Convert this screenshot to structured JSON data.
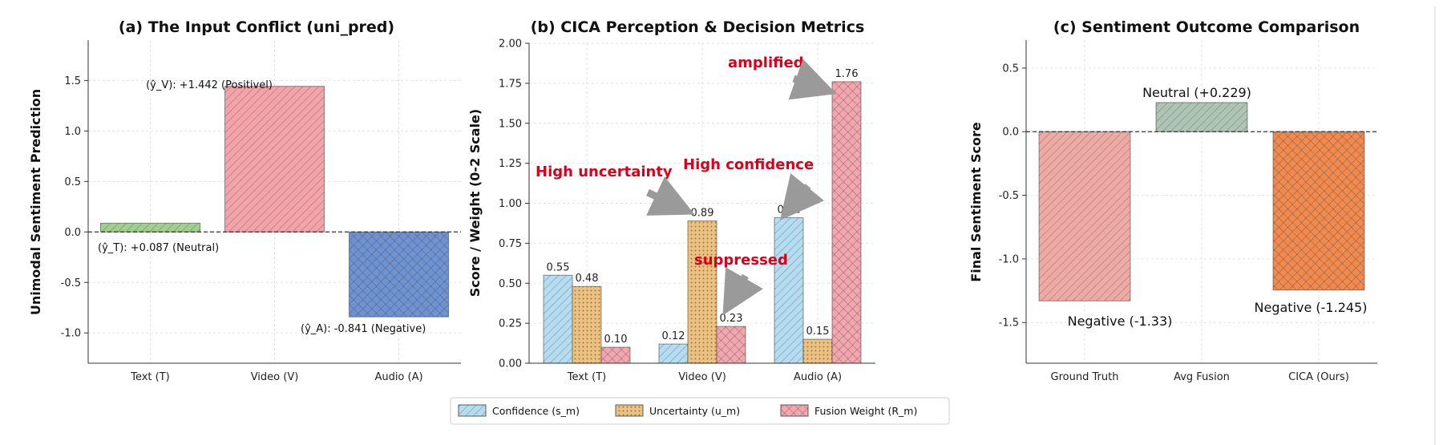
{
  "chart_data": [
    {
      "type": "bar",
      "title": "(a) The Input Conflict (uni_pred)",
      "xlabel": "",
      "ylabel": "Unimodal Sentiment Prediction",
      "categories": [
        "Text (T)",
        "Video (V)",
        "Audio (A)"
      ],
      "values": [
        0.087,
        1.442,
        -0.841
      ],
      "colors": [
        "#9fd18b",
        "#f3a3a9",
        "#6f93d2"
      ],
      "ylim": [
        -1.3,
        1.9
      ],
      "yticks": [
        "-1.0",
        "-0.5",
        "0.0",
        "0.5",
        "1.0",
        "1.5"
      ],
      "annotations": [
        "(ŷ_T): +0.087 (Neutral)",
        "(ŷ_V): +1.442 (Positivel)",
        "(ŷ_A): -0.841 (Negative)"
      ],
      "grid": true
    },
    {
      "type": "bar",
      "title": "(b) CICA Perception & Decision Metrics",
      "xlabel": "",
      "ylabel": "Score / Weight (0-2 Scale)",
      "categories": [
        "Text (T)",
        "Video (V)",
        "Audio (A)"
      ],
      "series": [
        {
          "name": "Confidence (s_m)",
          "values": [
            0.55,
            0.12,
            0.91
          ],
          "color": "#b5ddf2"
        },
        {
          "name": "Uncertainty (u_m)",
          "values": [
            0.48,
            0.89,
            0.15
          ],
          "color": "#ecc282"
        },
        {
          "name": "Fusion Weight (R_m)",
          "values": [
            0.1,
            0.23,
            1.76
          ],
          "color": "#f3a6ae"
        }
      ],
      "value_labels": [
        "0.55",
        "0.12",
        "0.91",
        "0.48",
        "0.89",
        "0.15",
        "0.10",
        "0.23",
        "1.76"
      ],
      "ylim": [
        0,
        2.0
      ],
      "yticks": [
        "0.00",
        "0.25",
        "0.50",
        "0.75",
        "1.00",
        "1.25",
        "1.50",
        "1.75",
        "2.00"
      ],
      "annotations": [
        "High uncertainty",
        "High confidence",
        "suppressed",
        "amplified"
      ],
      "legend_position": "bottom-center",
      "grid": true
    },
    {
      "type": "bar",
      "title": "(c) Sentiment Outcome Comparison",
      "xlabel": "",
      "ylabel": "Final Sentiment Score",
      "categories": [
        "Ground Truth",
        "Avg Fusion",
        "CICA (Ours)"
      ],
      "values": [
        -1.33,
        0.229,
        -1.245
      ],
      "colors": [
        "#efaaa3",
        "#aec4b5",
        "#f08a4f"
      ],
      "ylim": [
        -1.82,
        0.72
      ],
      "yticks": [
        "-1.5",
        "-1.0",
        "-0.5",
        "0.0",
        "0.5"
      ],
      "annotations": [
        "Negative (-1.33)",
        "Neutral (+0.229)",
        "Negative (-1.245)"
      ],
      "grid": true
    }
  ]
}
